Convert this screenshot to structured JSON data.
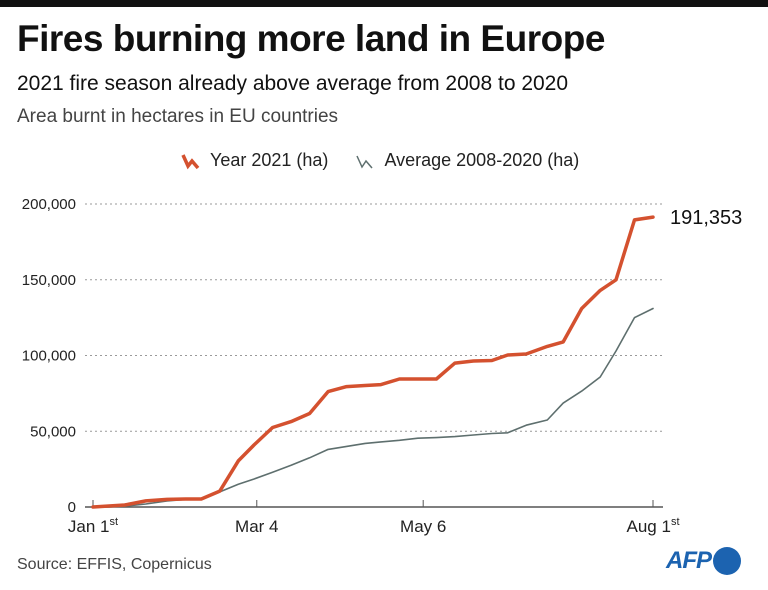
{
  "header": {
    "title": "Fires burning more land in Europe",
    "subtitle": "2021 fire season already above average from 2008 to 2020",
    "unit_note": "Area burnt in hectares in EU countries"
  },
  "footer": {
    "source": "Source:  EFFIS, Copernicus",
    "logo_text": "AFP"
  },
  "colors": {
    "year2021": "#d4512f",
    "average": "#5e6f6e",
    "logo": "#1c63b0"
  },
  "chart_data": {
    "type": "line",
    "title": "Fires burning more land in Europe",
    "subtitle": "2021 fire season already above average from 2008 to 2020",
    "ylabel": "Area burnt in hectares in EU countries",
    "xlabel": "",
    "x_unit": "day of year (0 = Jan 1st)",
    "xlim": [
      0,
      212
    ],
    "ylim": [
      0,
      200000
    ],
    "grid": true,
    "legend_position": "top",
    "x_ticks": [
      {
        "day": 0,
        "label": "Jan 1",
        "sup": "st"
      },
      {
        "day": 62,
        "label": "Mar 4",
        "sup": ""
      },
      {
        "day": 125,
        "label": "May 6",
        "sup": ""
      },
      {
        "day": 212,
        "label": "Aug 1",
        "sup": "st"
      }
    ],
    "y_ticks": [
      {
        "value": 0,
        "label": "0"
      },
      {
        "value": 50000,
        "label": "50,000"
      },
      {
        "value": 100000,
        "label": "100,000"
      },
      {
        "value": 150000,
        "label": "150,000"
      },
      {
        "value": 200000,
        "label": "200,000"
      }
    ],
    "x": [
      0,
      6,
      12,
      20,
      28,
      35,
      41,
      48,
      55,
      61,
      68,
      75,
      82,
      89,
      96,
      103,
      109,
      116,
      123,
      130,
      137,
      144,
      151,
      157,
      164,
      172,
      178,
      185,
      192,
      198,
      205,
      212
    ],
    "series": [
      {
        "name": "Year 2021 (ha)",
        "key": "year2021",
        "values": [
          0,
          660,
          1300,
          4000,
          5000,
          5300,
          5300,
          10500,
          30400,
          41000,
          52500,
          56400,
          61700,
          76200,
          79500,
          80200,
          80800,
          84500,
          84500,
          84500,
          95000,
          96400,
          96700,
          100300,
          101000,
          106000,
          109000,
          131000,
          143000,
          150000,
          189500,
          191353
        ]
      },
      {
        "name": "Average 2008-2020 (ha)",
        "key": "average",
        "values": [
          0,
          0,
          500,
          2000,
          4000,
          5000,
          5300,
          10000,
          15000,
          18500,
          23000,
          27500,
          32500,
          38000,
          40000,
          42000,
          43000,
          44000,
          45400,
          45800,
          46500,
          47500,
          48500,
          49000,
          54000,
          57400,
          68600,
          76500,
          85800,
          103000,
          125000,
          131000
        ]
      }
    ],
    "annotations": [
      {
        "series": "year2021",
        "label": "191,353"
      }
    ]
  }
}
